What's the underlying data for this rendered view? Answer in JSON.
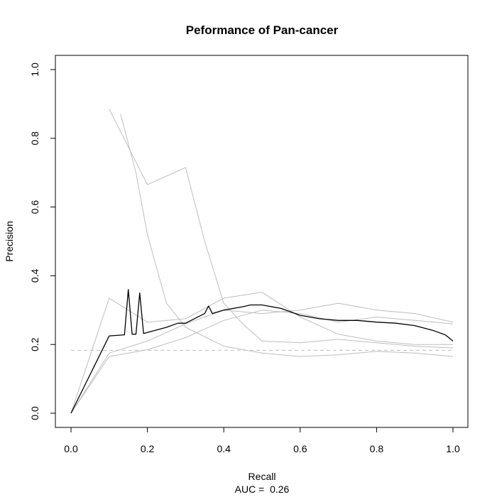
{
  "chart_data": {
    "type": "line",
    "title": "Peformance of Pan-cancer",
    "xlabel": "Recall",
    "ylabel": "Precision",
    "subtitle": "AUC =  0.26",
    "xlim": [
      0,
      1
    ],
    "ylim": [
      0,
      1
    ],
    "x_ticks": [
      "0.0",
      "0.2",
      "0.4",
      "0.6",
      "0.8",
      "1.0"
    ],
    "y_ticks": [
      "0.0",
      "0.2",
      "0.4",
      "0.6",
      "0.8",
      "1.0"
    ],
    "grid": false,
    "baseline": {
      "y": 0.183,
      "color": "#bebebe",
      "style": "dashed"
    },
    "series": [
      {
        "color": "#bebebe",
        "x": [
          0.0,
          0.1,
          0.2,
          0.3,
          0.4,
          0.5,
          0.6,
          0.7,
          0.8,
          0.9,
          1.0
        ],
        "y": [
          0.0,
          0.335,
          0.265,
          0.275,
          0.335,
          0.352,
          0.28,
          0.23,
          0.21,
          0.2,
          0.2
        ]
      },
      {
        "color": "#bebebe",
        "x": [
          0.1,
          0.2,
          0.3,
          0.35,
          0.4,
          0.45,
          0.5,
          0.6,
          0.7,
          0.8,
          0.9,
          1.0
        ],
        "y": [
          0.885,
          0.665,
          0.715,
          0.5,
          0.32,
          0.26,
          0.21,
          0.205,
          0.215,
          0.205,
          0.195,
          0.19
        ]
      },
      {
        "color": "#bebebe",
        "x": [
          0.0,
          0.1,
          0.2,
          0.3,
          0.4,
          0.5,
          0.6,
          0.7,
          0.8,
          0.9,
          1.0
        ],
        "y": [
          0.0,
          0.175,
          0.21,
          0.26,
          0.3,
          0.29,
          0.3,
          0.32,
          0.3,
          0.29,
          0.265
        ]
      },
      {
        "color": "#bebebe",
        "x": [
          0.13,
          0.17,
          0.2,
          0.25,
          0.3,
          0.4,
          0.5,
          0.6,
          0.7,
          0.8,
          0.9,
          1.0
        ],
        "y": [
          0.87,
          0.7,
          0.52,
          0.32,
          0.25,
          0.195,
          0.175,
          0.165,
          0.17,
          0.18,
          0.175,
          0.165
        ]
      },
      {
        "color": "#bebebe",
        "x": [
          0.0,
          0.1,
          0.2,
          0.3,
          0.4,
          0.5,
          0.6,
          0.7,
          0.8,
          0.9,
          1.0
        ],
        "y": [
          0.0,
          0.165,
          0.185,
          0.22,
          0.27,
          0.3,
          0.29,
          0.265,
          0.28,
          0.27,
          0.26
        ]
      },
      {
        "color": "#000000",
        "x": [
          0.0,
          0.1,
          0.14,
          0.15,
          0.16,
          0.17,
          0.18,
          0.19,
          0.2,
          0.25,
          0.28,
          0.3,
          0.35,
          0.36,
          0.37,
          0.4,
          0.45,
          0.47,
          0.5,
          0.55,
          0.6,
          0.65,
          0.7,
          0.75,
          0.8,
          0.85,
          0.9,
          0.95,
          0.98,
          1.0
        ],
        "y": [
          0.0,
          0.225,
          0.228,
          0.36,
          0.23,
          0.23,
          0.35,
          0.232,
          0.235,
          0.25,
          0.262,
          0.262,
          0.29,
          0.312,
          0.29,
          0.3,
          0.31,
          0.315,
          0.315,
          0.305,
          0.285,
          0.275,
          0.27,
          0.27,
          0.265,
          0.262,
          0.255,
          0.24,
          0.228,
          0.21
        ]
      }
    ]
  }
}
